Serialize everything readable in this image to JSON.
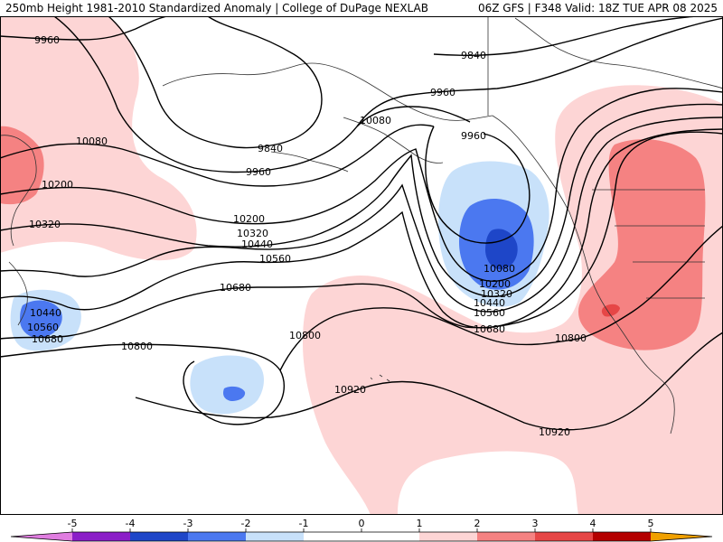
{
  "header": {
    "left_title": "250mb Height 1981-2010 Standardized Anomaly | College of DuPage NEXLAB",
    "right_title": "06Z GFS | F348 Valid: 18Z TUE APR 08 2025"
  },
  "colors": {
    "anom_n5": "#e07de0",
    "anom_n4": "#8b1ec8",
    "anom_n3": "#1e46c8",
    "anom_n2": "#4b78f0",
    "anom_n1": "#c8e1fa",
    "anom_0": "#ffffff",
    "anom_p1": "#fdd5d5",
    "anom_p2": "#f58282",
    "anom_p3": "#e64646",
    "anom_p4": "#b40000",
    "anom_p5": "#f0a000",
    "anom_p6": "#ffe100",
    "contour": "#000000",
    "coast": "#333333"
  },
  "contour_labels": [
    {
      "text": "9960"
    },
    {
      "text": "9840"
    },
    {
      "text": "9960"
    },
    {
      "text": "9840"
    },
    {
      "text": "9960"
    },
    {
      "text": "10080"
    },
    {
      "text": "9960"
    },
    {
      "text": "10080"
    },
    {
      "text": "10200"
    },
    {
      "text": "10320"
    },
    {
      "text": "10200"
    },
    {
      "text": "10320"
    },
    {
      "text": "10440"
    },
    {
      "text": "10560"
    },
    {
      "text": "10680"
    },
    {
      "text": "10080"
    },
    {
      "text": "10200"
    },
    {
      "text": "10320"
    },
    {
      "text": "10440"
    },
    {
      "text": "10560"
    },
    {
      "text": "10680"
    },
    {
      "text": "10800"
    },
    {
      "text": "10800"
    },
    {
      "text": "10800"
    },
    {
      "text": "10920"
    },
    {
      "text": "10920"
    },
    {
      "text": "10440"
    },
    {
      "text": "10560"
    },
    {
      "text": "10680"
    }
  ],
  "colorbar": {
    "ticks": [
      "-5",
      "-4",
      "-3",
      "-2",
      "-1",
      "0",
      "1",
      "2",
      "3",
      "4",
      "5"
    ]
  }
}
